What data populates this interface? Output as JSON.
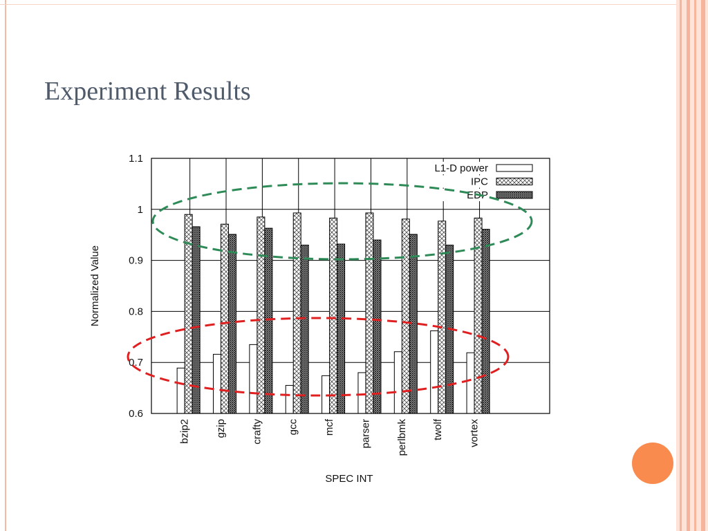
{
  "slide": {
    "title": "Experiment Results"
  },
  "chart_data": {
    "type": "bar",
    "x_label": "SPEC INT",
    "y_label": "Normalized Value",
    "categories": [
      "bzip2",
      "gzip",
      "crafty",
      "gcc",
      "mcf",
      "parser",
      "perlbmk",
      "twolf",
      "vortex"
    ],
    "series": [
      {
        "name": "L1-D power",
        "color": "#ffffff",
        "hatch": null,
        "values": [
          0.689,
          0.716,
          0.735,
          0.655,
          0.674,
          0.68,
          0.721,
          0.762,
          0.719
        ]
      },
      {
        "name": "IPC",
        "color": "#555555",
        "hatch": "sparse",
        "values": [
          0.99,
          0.971,
          0.985,
          0.993,
          0.983,
          0.993,
          0.981,
          0.977,
          0.983
        ]
      },
      {
        "name": "EDP",
        "color": "#222222",
        "hatch": "dense",
        "values": [
          0.966,
          0.951,
          0.963,
          0.93,
          0.932,
          0.94,
          0.951,
          0.93,
          0.961
        ]
      }
    ],
    "ylim": [
      0.6,
      1.1
    ],
    "yticks": [
      0.6,
      0.7,
      0.8,
      0.9,
      1,
      1.1
    ],
    "grid": true,
    "legend": "top-right"
  }
}
